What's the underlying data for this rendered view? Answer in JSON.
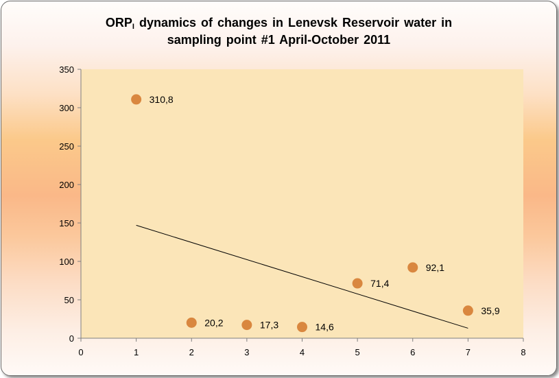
{
  "chart_data": {
    "type": "scatter",
    "title": {
      "prefix": "ORP",
      "subscript": "I",
      "line1_rest": " dynamics  of changes in Lenevsk Reservoir water in",
      "line2": "sampling point #1 April-October 2011"
    },
    "xlabel": "",
    "ylabel": "",
    "xlim": [
      0,
      8
    ],
    "ylim": [
      0,
      350
    ],
    "xticks": [
      0,
      1,
      2,
      3,
      4,
      5,
      6,
      7,
      8
    ],
    "yticks": [
      0,
      50,
      100,
      150,
      200,
      250,
      300,
      350
    ],
    "grid": false,
    "legend": "none",
    "points": [
      {
        "x": 1,
        "y": 310.8,
        "label": "310,8"
      },
      {
        "x": 2,
        "y": 20.2,
        "label": "20,2"
      },
      {
        "x": 3,
        "y": 17.3,
        "label": "17,3"
      },
      {
        "x": 4,
        "y": 14.6,
        "label": "14,6"
      },
      {
        "x": 5,
        "y": 71.4,
        "label": "71,4"
      },
      {
        "x": 6,
        "y": 92.1,
        "label": "92,1"
      },
      {
        "x": 7,
        "y": 35.9,
        "label": "35,9"
      }
    ],
    "trendline": {
      "type": "linear",
      "x": [
        1,
        7
      ],
      "y": [
        147,
        13
      ]
    },
    "colors": {
      "marker": "#d9873f",
      "plot_area": "#fbe5b8",
      "axis": "#7f7f7f",
      "trendline": "#000000"
    }
  }
}
